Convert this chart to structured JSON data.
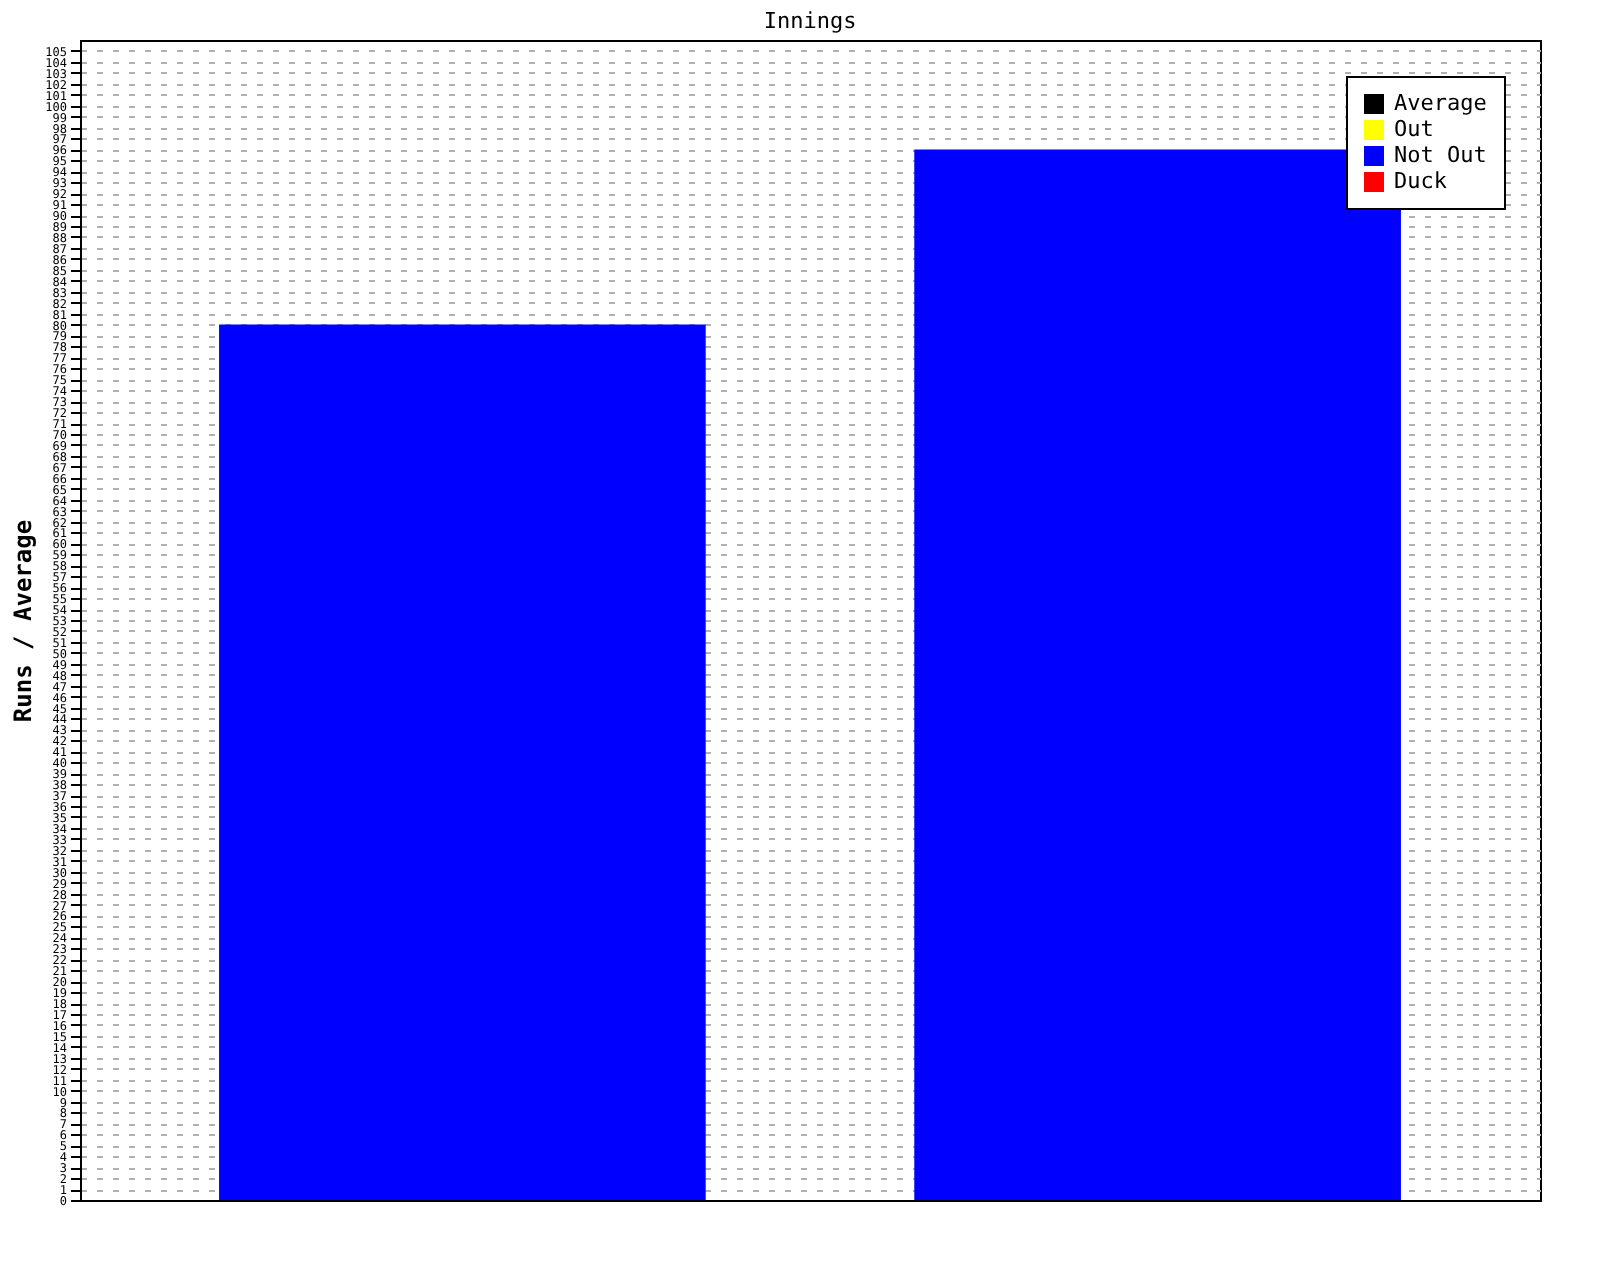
{
  "chart_data": {
    "type": "bar",
    "title": "Innings",
    "ylabel": "Runs / Average",
    "categories": [
      null,
      null
    ],
    "series": [
      {
        "name": "Average",
        "color": "#000000",
        "values": [
          null,
          null
        ]
      },
      {
        "name": "Out",
        "color": "#ffff00",
        "values": [
          null,
          null
        ]
      },
      {
        "name": "Not Out",
        "color": "#0000ff",
        "values": [
          80,
          96
        ]
      },
      {
        "name": "Duck",
        "color": "#ff0000",
        "values": [
          null,
          null
        ]
      }
    ],
    "ylim": [
      0,
      106
    ],
    "yticks": [
      0,
      1,
      2,
      3,
      4,
      5,
      6,
      7,
      8,
      9,
      10,
      11,
      12,
      13,
      14,
      15,
      16,
      17,
      18,
      19,
      20,
      21,
      22,
      23,
      24,
      25,
      26,
      27,
      28,
      29,
      30,
      31,
      32,
      33,
      34,
      35,
      36,
      37,
      38,
      39,
      40,
      41,
      42,
      43,
      44,
      45,
      46,
      47,
      48,
      49,
      50,
      51,
      52,
      53,
      54,
      55,
      56,
      57,
      58,
      59,
      60,
      61,
      62,
      63,
      64,
      65,
      66,
      67,
      68,
      69,
      70,
      71,
      72,
      73,
      74,
      75,
      76,
      77,
      78,
      79,
      80,
      81,
      82,
      83,
      84,
      85,
      86,
      87,
      88,
      89,
      90,
      91,
      92,
      93,
      94,
      95,
      96,
      97,
      98,
      99,
      100,
      101,
      102,
      103,
      104,
      105
    ],
    "grid": "y",
    "legend": "top right"
  }
}
